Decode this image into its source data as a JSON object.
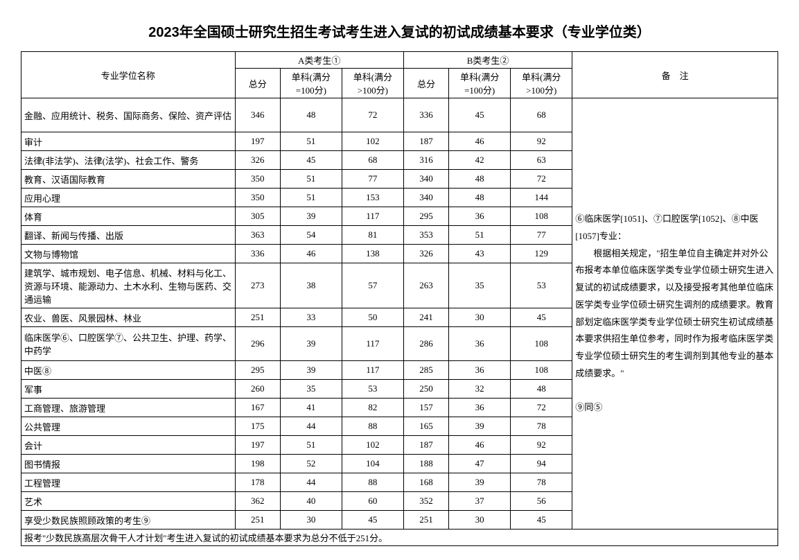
{
  "title": "2023年全国硕士研究生招生考试考生进入复试的初试成绩基本要求（专业学位类）",
  "headers": {
    "major": "专业学位名称",
    "groupA": "A类考生①",
    "groupB": "B类考生②",
    "notes": "备　注",
    "total": "总分",
    "sub1": "单科(满分=100分)",
    "sub2": "单科(满分>100分)"
  },
  "rows": [
    {
      "major": "金融、应用统计、税务、国际商务、保险、资产评估",
      "a": [
        346,
        48,
        72
      ],
      "b": [
        336,
        45,
        68
      ],
      "cls": "tall"
    },
    {
      "major": "审计",
      "a": [
        197,
        51,
        102
      ],
      "b": [
        187,
        46,
        92
      ]
    },
    {
      "major": "法律(非法学)、法律(法学)、社会工作、警务",
      "a": [
        326,
        45,
        68
      ],
      "b": [
        316,
        42,
        63
      ]
    },
    {
      "major": "教育、汉语国际教育",
      "a": [
        350,
        51,
        77
      ],
      "b": [
        340,
        48,
        72
      ]
    },
    {
      "major": "应用心理",
      "a": [
        350,
        51,
        153
      ],
      "b": [
        340,
        48,
        144
      ]
    },
    {
      "major": "体育",
      "a": [
        305,
        39,
        117
      ],
      "b": [
        295,
        36,
        108
      ]
    },
    {
      "major": "翻译、新闻与传播、出版",
      "a": [
        363,
        54,
        81
      ],
      "b": [
        353,
        51,
        77
      ]
    },
    {
      "major": "文物与博物馆",
      "a": [
        336,
        46,
        138
      ],
      "b": [
        326,
        43,
        129
      ]
    },
    {
      "major": "建筑学、城市规划、电子信息、机械、材料与化工、资源与环境、能源动力、土木水利、生物与医药、交通运输",
      "a": [
        273,
        38,
        57
      ],
      "b": [
        263,
        35,
        53
      ],
      "cls": "tall3"
    },
    {
      "major": "农业、兽医、风景园林、林业",
      "a": [
        251,
        33,
        50
      ],
      "b": [
        241,
        30,
        45
      ]
    },
    {
      "major": "临床医学⑥、口腔医学⑦、公共卫生、护理、药学、中药学",
      "a": [
        296,
        39,
        117
      ],
      "b": [
        286,
        36,
        108
      ],
      "cls": "tall"
    },
    {
      "major": "中医⑧",
      "a": [
        295,
        39,
        117
      ],
      "b": [
        285,
        36,
        108
      ]
    },
    {
      "major": "军事",
      "a": [
        260,
        35,
        53
      ],
      "b": [
        250,
        32,
        48
      ]
    },
    {
      "major": "工商管理、旅游管理",
      "a": [
        167,
        41,
        82
      ],
      "b": [
        157,
        36,
        72
      ]
    },
    {
      "major": "公共管理",
      "a": [
        175,
        44,
        88
      ],
      "b": [
        165,
        39,
        78
      ]
    },
    {
      "major": "会计",
      "a": [
        197,
        51,
        102
      ],
      "b": [
        187,
        46,
        92
      ]
    },
    {
      "major": "图书情报",
      "a": [
        198,
        52,
        104
      ],
      "b": [
        188,
        47,
        94
      ]
    },
    {
      "major": "工程管理",
      "a": [
        178,
        44,
        88
      ],
      "b": [
        168,
        39,
        78
      ]
    },
    {
      "major": "艺术",
      "a": [
        362,
        40,
        60
      ],
      "b": [
        352,
        37,
        56
      ]
    },
    {
      "major": "享受少数民族照顾政策的考生⑨",
      "a": [
        251,
        30,
        45
      ],
      "b": [
        251,
        30,
        45
      ]
    }
  ],
  "notes_html": "⑥临床医学[1051]、⑦口腔医学[1052]、⑧中医[1057]专业：<br>　　根据相关规定，\"招生单位自主确定并对外公布报考本单位临床医学类专业学位硕士研究生进入复试的初试成绩要求，以及接受报考其他单位临床医学类专业学位硕士研究生调剂的成绩要求。教育部划定临床医学类专业学位硕士研究生初试成绩基本要求供招生单位参考，同时作为报考临床医学类专业学位硕士研究生的考生调剂到其他专业的基本成绩要求。\"<br><br>⑨同⑤",
  "footer": "报考\"少数民族高层次骨干人才计划\"考生进入复试的初试成绩基本要求为总分不低于251分。"
}
